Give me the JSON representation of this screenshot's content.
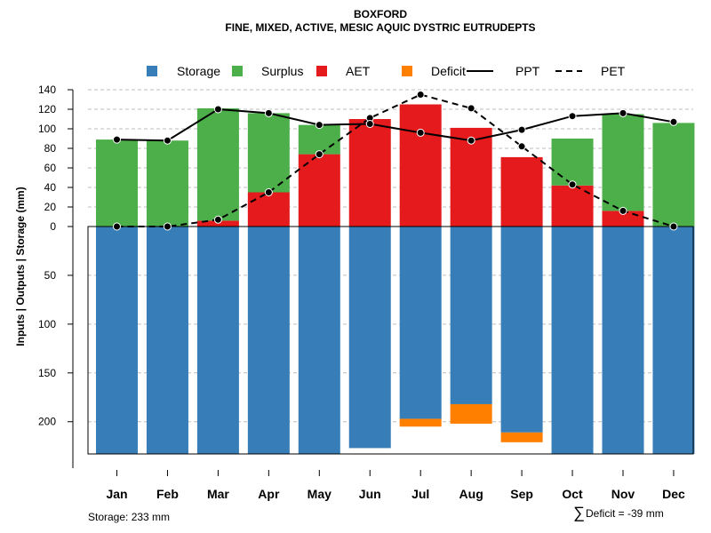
{
  "chart_data": {
    "type": "bar",
    "title": "BOXFORD",
    "subtitle": "FINE, MIXED, ACTIVE, MESIC AQUIC DYSTRIC EUTRUDEPTS",
    "ylabel": "Inputs | Outputs | Storage     (mm)",
    "categories": [
      "Jan",
      "Feb",
      "Mar",
      "Apr",
      "May",
      "Jun",
      "Jul",
      "Aug",
      "Sep",
      "Oct",
      "Nov",
      "Dec"
    ],
    "upper_ylim": [
      0,
      140
    ],
    "upper_ticks": [
      0,
      20,
      40,
      60,
      80,
      100,
      120,
      140
    ],
    "lower_ylim": [
      0,
      233
    ],
    "lower_ticks": [
      50,
      100,
      150,
      200
    ],
    "upper_tick_labels": [
      "0",
      "20",
      "40",
      "60",
      "80",
      "100",
      "120",
      "140"
    ],
    "lower_tick_labels": [
      "50",
      "100",
      "150",
      "200"
    ],
    "grid": true,
    "legend_position": "top",
    "legend": [
      {
        "label": "Storage",
        "kind": "box",
        "color": "#377eb8"
      },
      {
        "label": "Surplus",
        "kind": "box",
        "color": "#4daf4a"
      },
      {
        "label": "AET",
        "kind": "box",
        "color": "#e41a1c"
      },
      {
        "label": "Deficit",
        "kind": "box",
        "color": "#ff7f00"
      },
      {
        "label": "PPT",
        "kind": "solid-line",
        "color": "#000000"
      },
      {
        "label": "PET",
        "kind": "dashed-line",
        "color": "#000000"
      }
    ],
    "series": [
      {
        "name": "AET",
        "color": "#e41a1c",
        "values": [
          0,
          0,
          6,
          35,
          74,
          110,
          125,
          101,
          71,
          42,
          16,
          0
        ]
      },
      {
        "name": "Surplus",
        "color": "#4daf4a",
        "values": [
          89,
          88,
          115,
          81,
          30,
          0,
          0,
          0,
          0,
          48,
          99,
          106
        ]
      },
      {
        "name": "Storage",
        "color": "#377eb8",
        "values": [
          233,
          233,
          233,
          233,
          233,
          227,
          197,
          182,
          211,
          233,
          233,
          233
        ]
      },
      {
        "name": "Deficit",
        "color": "#ff7f00",
        "values": [
          0,
          0,
          0,
          0,
          0,
          0,
          8,
          20,
          10,
          0,
          0,
          0
        ]
      },
      {
        "name": "PPT",
        "color": "#000000",
        "style": "solid",
        "values": [
          89,
          88,
          120,
          116,
          104,
          105,
          96,
          88,
          99,
          113,
          116,
          107
        ]
      },
      {
        "name": "PET",
        "color": "#000000",
        "style": "dashed",
        "values": [
          0,
          0,
          7,
          35,
          74,
          111,
          135,
          121,
          82,
          43,
          16,
          0
        ]
      }
    ],
    "annotations": {
      "storage_note": "Storage: 233 mm",
      "deficit_symbol": "∑",
      "deficit_note": "Deficit = -39 mm"
    }
  }
}
